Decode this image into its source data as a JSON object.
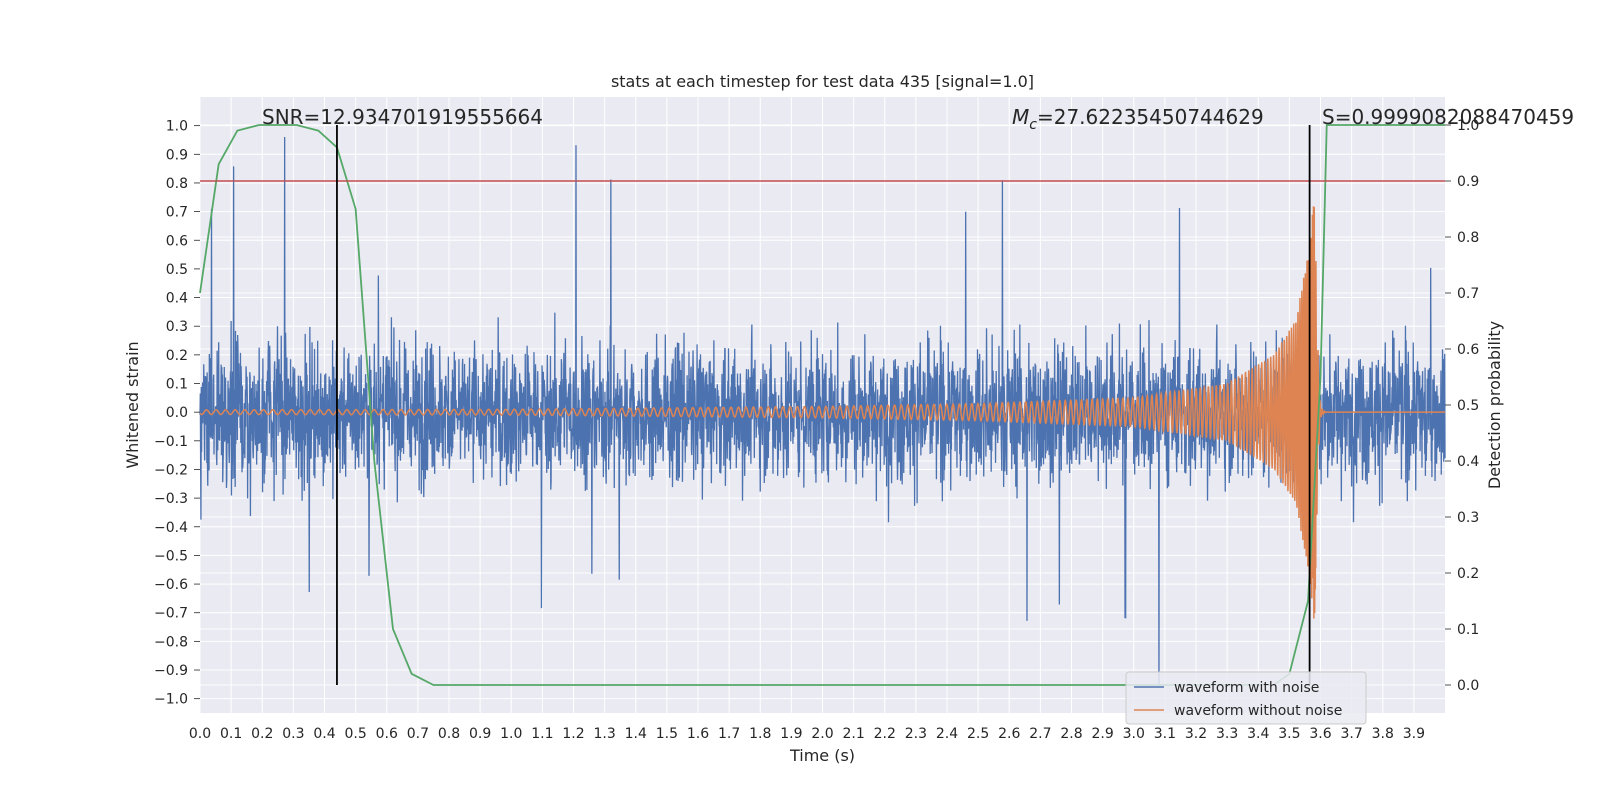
{
  "chart_data": {
    "type": "line",
    "title": "stats at each timestep for test data 435 [signal=1.0]",
    "xlabel": "Time (s)",
    "ylabel": "Whitened strain",
    "y2label": "Detection probability",
    "xlim": [
      0.0,
      4.0
    ],
    "ylim": [
      -1.05,
      1.1
    ],
    "y2lim": [
      -0.05,
      1.05
    ],
    "grid": true,
    "x_ticks": [
      "0.0",
      "0.1",
      "0.2",
      "0.3",
      "0.4",
      "0.5",
      "0.6",
      "0.7",
      "0.8",
      "0.9",
      "1.0",
      "1.1",
      "1.2",
      "1.3",
      "1.4",
      "1.5",
      "1.6",
      "1.7",
      "1.8",
      "1.9",
      "2.0",
      "2.1",
      "2.2",
      "2.3",
      "2.4",
      "2.5",
      "2.6",
      "2.7",
      "2.8",
      "2.9",
      "3.0",
      "3.1",
      "3.2",
      "3.3",
      "3.4",
      "3.5",
      "3.6",
      "3.7",
      "3.8",
      "3.9"
    ],
    "y_ticks": [
      "1.0",
      "0.9",
      "0.8",
      "0.7",
      "0.6",
      "0.5",
      "0.4",
      "0.3",
      "0.2",
      "0.1",
      "0.0",
      "−0.1",
      "−0.2",
      "−0.3",
      "−0.4",
      "−0.5",
      "−0.6",
      "−0.7",
      "−0.8",
      "−0.9",
      "−1.0"
    ],
    "y2_ticks": [
      "1.0",
      "0.9",
      "0.8",
      "0.7",
      "0.6",
      "0.5",
      "0.4",
      "0.3",
      "0.2",
      "0.1",
      "0.0"
    ],
    "annotations": {
      "snr": "SNR=12.934701919555664",
      "mc_symbol": "M",
      "mc_sub": "c",
      "mc_value": "=27.62235450744629",
      "s": "S=0.9999082088470459"
    },
    "threshold": {
      "y2": 0.9,
      "color": "#c44e52"
    },
    "vlines": [
      {
        "x": 0.44
      },
      {
        "x": 3.565
      }
    ],
    "series": [
      {
        "name": "waveform with noise",
        "axis": "left",
        "color": "#4c72b0",
        "description": "whitened noisy strain; approx amplitude envelope ±0.5, peaks to ±1.0",
        "envelope_points": [
          [
            0.0,
            0.45,
            -0.35
          ],
          [
            0.05,
            0.8,
            -0.77
          ],
          [
            0.25,
            1.0,
            -0.68
          ],
          [
            0.5,
            0.55,
            -0.55
          ],
          [
            0.6,
            0.45,
            -0.6
          ],
          [
            1.0,
            0.45,
            -0.81
          ],
          [
            1.2,
            0.94,
            -0.55
          ],
          [
            1.5,
            0.62,
            -0.62
          ],
          [
            1.8,
            0.6,
            -0.63
          ],
          [
            2.0,
            0.6,
            -0.6
          ],
          [
            2.3,
            0.55,
            -0.77
          ],
          [
            2.6,
            0.83,
            -0.76
          ],
          [
            2.8,
            0.79,
            -0.65
          ],
          [
            3.0,
            0.73,
            -0.73
          ],
          [
            3.07,
            0.6,
            -0.97
          ],
          [
            3.2,
            0.79,
            -0.78
          ],
          [
            3.3,
            0.79,
            -0.84
          ],
          [
            3.55,
            0.82,
            -0.62
          ],
          [
            3.6,
            0.82,
            -0.9
          ],
          [
            3.8,
            0.65,
            -0.72
          ],
          [
            4.0,
            0.46,
            -0.56
          ]
        ]
      },
      {
        "name": "waveform without noise",
        "axis": "left",
        "color": "#dd8452",
        "description": "chirp signal growing in amplitude and frequency until merger near 3.58 s",
        "envelope_points": [
          [
            0.0,
            0.008
          ],
          [
            1.0,
            0.01
          ],
          [
            2.0,
            0.02
          ],
          [
            2.5,
            0.03
          ],
          [
            3.0,
            0.05
          ],
          [
            3.3,
            0.1
          ],
          [
            3.45,
            0.2
          ],
          [
            3.52,
            0.32
          ],
          [
            3.56,
            0.55
          ],
          [
            3.58,
            0.75
          ],
          [
            3.6,
            0.05
          ],
          [
            3.62,
            0.0
          ],
          [
            4.0,
            0.0
          ]
        ]
      },
      {
        "name": "detection probability",
        "axis": "right",
        "color": "#55a868",
        "points": [
          [
            0.0,
            0.7
          ],
          [
            0.06,
            0.93
          ],
          [
            0.12,
            0.99
          ],
          [
            0.19,
            1.0
          ],
          [
            0.31,
            1.0
          ],
          [
            0.38,
            0.99
          ],
          [
            0.44,
            0.96
          ],
          [
            0.5,
            0.85
          ],
          [
            0.56,
            0.4
          ],
          [
            0.62,
            0.1
          ],
          [
            0.68,
            0.02
          ],
          [
            0.75,
            0.0
          ],
          [
            1.0,
            0.0
          ],
          [
            2.0,
            0.0
          ],
          [
            3.0,
            0.0
          ],
          [
            3.45,
            0.0
          ],
          [
            3.5,
            0.02
          ],
          [
            3.56,
            0.15
          ],
          [
            3.6,
            0.55
          ],
          [
            3.62,
            1.0
          ],
          [
            3.7,
            1.0
          ],
          [
            4.0,
            1.0
          ]
        ]
      }
    ],
    "legend": {
      "placement": "lower-right",
      "entries": [
        {
          "label": "waveform with noise",
          "color": "#4c72b0"
        },
        {
          "label": "waveform without noise",
          "color": "#dd8452"
        }
      ]
    },
    "colors": {
      "plot_bg": "#eaeaf2",
      "grid": "#ffffff",
      "text": "#262626",
      "vline": "#000000"
    }
  }
}
